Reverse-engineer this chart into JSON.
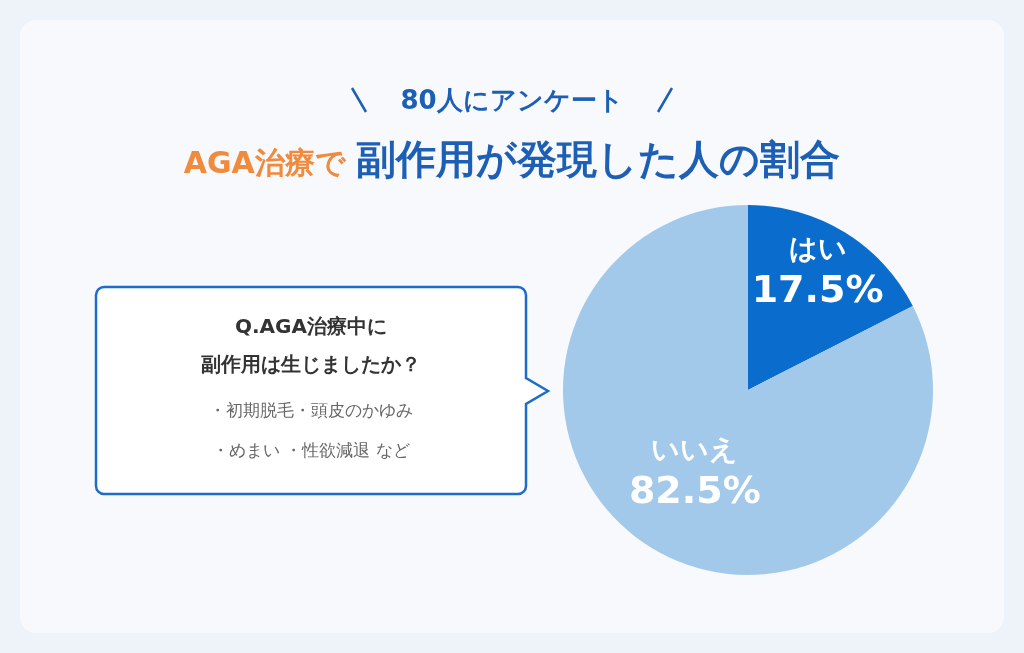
{
  "chart_data": {
    "type": "pie",
    "subtitle": "80人にアンケート",
    "title": "AGA治療で 副作用が発現した人の割合",
    "categories": [
      "はい",
      "いいえ"
    ],
    "values": [
      17.5,
      82.5
    ],
    "colors": [
      "#0a6ccc",
      "#a3c9ea"
    ],
    "value_labels": [
      "17.5%",
      "82.5%"
    ],
    "annotations": [
      "Q.AGA治療中に",
      "副作用は生じましたか？",
      "・初期脱毛・頭皮のかゆみ",
      "・めまい ・性欲減退 など"
    ]
  }
}
